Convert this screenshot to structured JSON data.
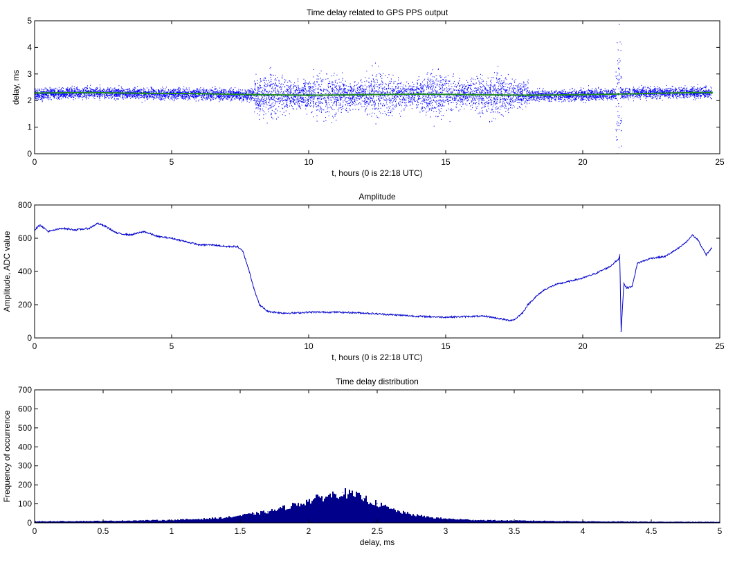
{
  "colors": {
    "delay": "#0000ff",
    "mean": "#228b22",
    "amplitude": "#0000cc",
    "histogram": "#00008b",
    "axis": "#000000"
  },
  "chart_data": [
    {
      "type": "scatter",
      "title": "Time delay related to GPS PPS output",
      "xlabel": "t, hours (0 is 22:18 UTC)",
      "ylabel": "delay, ms",
      "xlim": [
        0,
        25
      ],
      "ylim": [
        0,
        5
      ],
      "xticks": [
        0,
        5,
        10,
        15,
        20,
        25
      ],
      "yticks": [
        0,
        1,
        2,
        3,
        4,
        5
      ],
      "grid": false,
      "series": [
        {
          "role": "samples",
          "note_spread": "dense band ~1.7-2.7 ms baseline; widens to 0-5 ms between t=8 and t=18; spike at t=21.3",
          "x": [
            0,
            2,
            4,
            6,
            7.9,
            8.5,
            10,
            12,
            14,
            16,
            17.8,
            18.5,
            20,
            21.3,
            22,
            24,
            24.7
          ],
          "y": [
            2.25,
            2.3,
            2.25,
            2.25,
            2.2,
            2.2,
            2.2,
            2.2,
            2.25,
            2.25,
            2.2,
            2.2,
            2.2,
            2.25,
            2.3,
            2.3,
            2.3
          ]
        },
        {
          "role": "mean",
          "x": [
            0,
            2,
            4,
            6,
            8,
            10,
            12,
            14,
            16,
            18,
            20,
            22,
            24,
            24.7
          ],
          "y": [
            2.28,
            2.3,
            2.27,
            2.26,
            2.22,
            2.2,
            2.22,
            2.24,
            2.22,
            2.2,
            2.22,
            2.26,
            2.3,
            2.3
          ]
        }
      ]
    },
    {
      "type": "line",
      "title": "Amplitude",
      "xlabel": "t, hours (0 is 22:18 UTC)",
      "ylabel": "Amplitude, ADC value",
      "xlim": [
        0,
        25
      ],
      "ylim": [
        0,
        800
      ],
      "xticks": [
        0,
        5,
        10,
        15,
        20,
        25
      ],
      "yticks": [
        0,
        200,
        400,
        600,
        800
      ],
      "grid": false,
      "series": [
        {
          "x": [
            0,
            0.2,
            0.5,
            1,
            1.5,
            2,
            2.3,
            2.6,
            3,
            3.5,
            4,
            4.5,
            5,
            5.5,
            6,
            6.5,
            7,
            7.4,
            7.6,
            7.8,
            8,
            8.2,
            8.5,
            9,
            9.5,
            10,
            11,
            12,
            13,
            14,
            15,
            16,
            16.5,
            17,
            17.3,
            17.5,
            17.8,
            18,
            18.3,
            18.6,
            19,
            19.5,
            20,
            20.5,
            21,
            21.2,
            21.3,
            21.35,
            21.4,
            21.5,
            21.6,
            21.8,
            22,
            22.5,
            23,
            23.5,
            23.8,
            24,
            24.2,
            24.5,
            24.7
          ],
          "y": [
            650,
            680,
            640,
            660,
            650,
            660,
            690,
            670,
            630,
            620,
            640,
            610,
            600,
            580,
            560,
            560,
            550,
            550,
            520,
            420,
            300,
            200,
            160,
            150,
            150,
            155,
            155,
            150,
            140,
            130,
            125,
            130,
            130,
            115,
            105,
            110,
            150,
            200,
            250,
            290,
            320,
            340,
            360,
            390,
            430,
            460,
            470,
            500,
            40,
            330,
            300,
            310,
            450,
            480,
            490,
            540,
            580,
            620,
            590,
            500,
            540
          ]
        }
      ]
    },
    {
      "type": "bar",
      "title": "Time delay distribution",
      "xlabel": "delay, ms",
      "ylabel": "Frequency of occurrence",
      "xlim": [
        0,
        5
      ],
      "ylim": [
        0,
        700
      ],
      "xticks": [
        0,
        0.5,
        1,
        1.5,
        2,
        2.5,
        3,
        3.5,
        4,
        4.5,
        5
      ],
      "xticklabels": [
        "0",
        "0.5",
        "1",
        "1.5",
        "2",
        "2.5",
        "3",
        "3.5",
        "4",
        "4.5",
        "5"
      ],
      "yticks": [
        0,
        100,
        200,
        300,
        400,
        500,
        600,
        700
      ],
      "grid": false,
      "x": [
        0,
        0.5,
        1,
        1.2,
        1.4,
        1.5,
        1.6,
        1.7,
        1.8,
        1.9,
        2.0,
        2.1,
        2.2,
        2.25,
        2.3,
        2.4,
        2.5,
        2.6,
        2.7,
        2.8,
        2.9,
        3.0,
        3.2,
        3.5,
        4,
        4.5,
        5
      ],
      "values": [
        8,
        10,
        15,
        20,
        28,
        38,
        48,
        58,
        75,
        95,
        115,
        135,
        150,
        160,
        150,
        130,
        100,
        72,
        52,
        38,
        28,
        22,
        15,
        12,
        8,
        6,
        5
      ]
    }
  ]
}
